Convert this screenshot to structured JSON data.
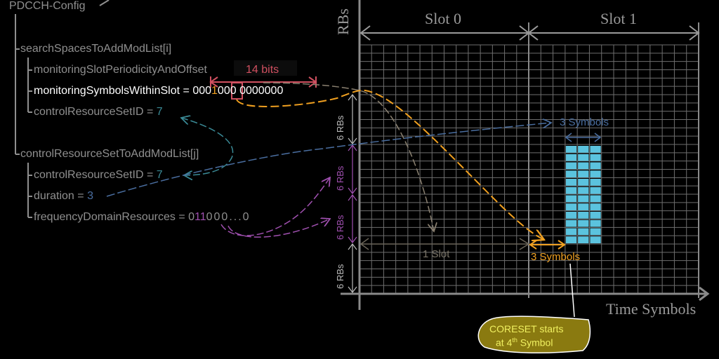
{
  "config_tree": {
    "root": "PDCCH-Config",
    "search_space": {
      "label": "searchSpacesToAddModList[i]",
      "periodicity": "monitoringSlotPeriodicityAndOffset",
      "symbols_label": "monitoringSymbolsWithinSlot = ",
      "symbols_prefix": "000",
      "symbols_highlight": "1",
      "symbols_suffix": "000 0000000",
      "coreset_id_label": "controlResourceSetID = ",
      "coreset_id_value": "7"
    },
    "coreset": {
      "label": "controlResourceSetToAddModList[j]",
      "coreset_id_label": "controlResourceSetID = ",
      "coreset_id_value": "7",
      "duration_label": "duration = ",
      "duration_value": "3",
      "freq_label": "frequencyDomainResources = ",
      "freq_prefix": "0",
      "freq_highlight": "11",
      "freq_suffix": "000...0"
    },
    "bits_annotation": "14 bits"
  },
  "grid": {
    "y_axis_label": "RBs",
    "x_axis_label": "Time Symbols",
    "slots": [
      "Slot 0",
      "Slot 1"
    ],
    "symbols_per_slot": 14,
    "rb_groups": [
      "6 RBs",
      "6 RBs",
      "6 RBs",
      "6 RBs"
    ],
    "one_slot_label": "1 Slot",
    "offset_label": "3 Symbols",
    "duration_label": "3 Symbols",
    "callout": {
      "line1": "CORESET starts",
      "line2_pre": "at 4",
      "line2_sup": "th",
      "line2_post": " Symbol"
    }
  },
  "colors": {
    "background": "#000000",
    "grid": "#6e6e6e",
    "axis": "#8a8a8a",
    "coreset_fill": "#5bc3de",
    "orange": "#f0a020",
    "red": "#d05060",
    "teal": "#3a8a96",
    "blue": "#4a6ea0",
    "purple": "#a050b0",
    "callout_fill": "#8a7a10",
    "callout_text": "#f0f060"
  }
}
